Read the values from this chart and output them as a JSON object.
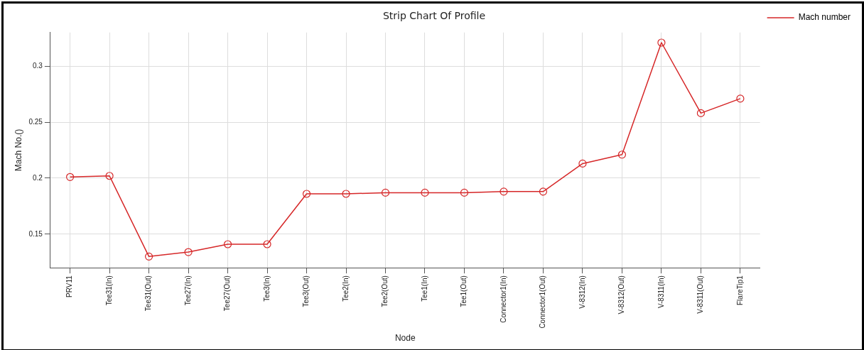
{
  "chart_data": {
    "type": "line",
    "title": "Strip Chart Of Profile",
    "xlabel": "Node",
    "ylabel": "Mach No.()",
    "categories": [
      "PRV11",
      "Tee31(In)",
      "Tee31(Out)",
      "Tee27(In)",
      "Tee27(Out)",
      "Tee3(In)",
      "Tee3(Out)",
      "Tee2(In)",
      "Tee2(Out)",
      "Tee1(In)",
      "Tee1(Out)",
      "Connector1(In)",
      "Connector1(Out)",
      "V-8312(In)",
      "V-8312(Out)",
      "V-8311(In)",
      "V-8311(Out)",
      "FlareTip1"
    ],
    "series": [
      {
        "name": "Mach number",
        "color": "#d62728",
        "values": [
          0.201,
          0.202,
          0.13,
          0.134,
          0.141,
          0.141,
          0.186,
          0.186,
          0.187,
          0.187,
          0.187,
          0.188,
          0.188,
          0.213,
          0.221,
          0.321,
          0.258,
          0.271
        ]
      }
    ],
    "ylim": [
      0.12,
      0.33
    ],
    "yticks": [
      0.15,
      0.2,
      0.25,
      0.3
    ],
    "grid": true,
    "legend": "top right",
    "marker": "circle",
    "line_style": "solid"
  }
}
